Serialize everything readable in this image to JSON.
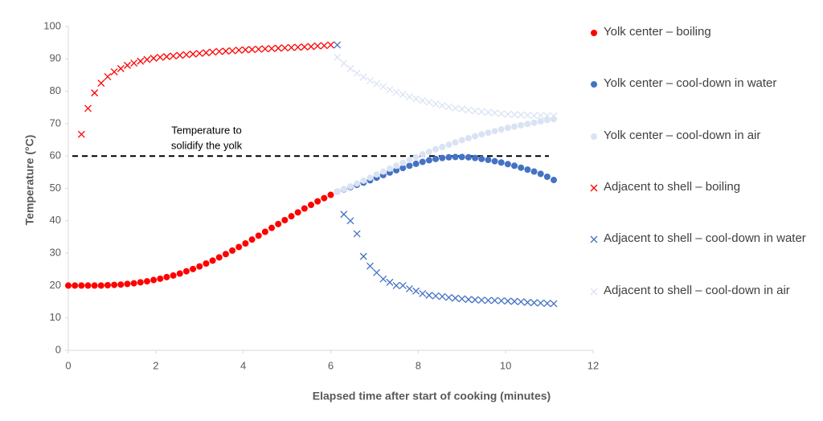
{
  "chart_data": {
    "type": "scatter",
    "xlabel": "Elapsed time after start of cooking (minutes)",
    "ylabel": "Temperature (°C)",
    "xlim": [
      0,
      12
    ],
    "xticks": [
      0,
      2,
      4,
      6,
      8,
      10,
      12
    ],
    "ylim": [
      0,
      100
    ],
    "yticks": [
      0,
      10,
      20,
      30,
      40,
      50,
      60,
      70,
      80,
      90,
      100
    ],
    "grid": false,
    "legend": "right",
    "reference_line": {
      "value": 60,
      "label": [
        "Temperature to",
        "solidify the yolk"
      ]
    },
    "series": [
      {
        "name": "Yolk center – boiling",
        "color": "#ff0000",
        "marker": "o",
        "x": [
          0,
          0.15,
          0.3,
          0.45,
          0.6,
          0.75,
          0.9,
          1.05,
          1.2,
          1.35,
          1.5,
          1.65,
          1.8,
          1.95,
          2.1,
          2.25,
          2.4,
          2.55,
          2.7,
          2.85,
          3.0,
          3.15,
          3.3,
          3.45,
          3.6,
          3.75,
          3.9,
          4.05,
          4.2,
          4.35,
          4.5,
          4.65,
          4.8,
          4.95,
          5.1,
          5.25,
          5.4,
          5.55,
          5.7,
          5.85,
          6.0
        ],
        "values": [
          20,
          20,
          20,
          20,
          20,
          20,
          20.1,
          20.2,
          20.3,
          20.5,
          20.7,
          21,
          21.3,
          21.7,
          22.1,
          22.6,
          23.1,
          23.7,
          24.4,
          25.1,
          25.9,
          26.8,
          27.7,
          28.7,
          29.7,
          30.8,
          31.9,
          33,
          34.2,
          35.4,
          36.6,
          37.8,
          39,
          40.2,
          41.4,
          42.6,
          43.8,
          44.9,
          46,
          47,
          48
        ]
      },
      {
        "name": "Yolk center – cool-down in water",
        "color": "#4472c4",
        "marker": "o",
        "x": [
          6.15,
          6.3,
          6.45,
          6.6,
          6.75,
          6.9,
          7.05,
          7.2,
          7.35,
          7.5,
          7.65,
          7.8,
          7.95,
          8.1,
          8.25,
          8.4,
          8.55,
          8.7,
          8.85,
          9.0,
          9.15,
          9.3,
          9.45,
          9.6,
          9.75,
          9.9,
          10.05,
          10.2,
          10.35,
          10.5,
          10.65,
          10.8,
          10.95,
          11.1
        ],
        "values": [
          49,
          49.7,
          50.4,
          51.1,
          51.8,
          52.5,
          53.3,
          54.1,
          54.9,
          55.6,
          56.3,
          57,
          57.6,
          58.2,
          58.7,
          59.1,
          59.4,
          59.6,
          59.7,
          59.7,
          59.6,
          59.4,
          59.1,
          58.8,
          58.4,
          58,
          57.5,
          57,
          56.4,
          55.8,
          55.2,
          54.5,
          53.6,
          52.6
        ]
      },
      {
        "name": "Yolk center – cool-down in air",
        "color": "#dae3f3",
        "marker": "o",
        "x": [
          6.15,
          6.3,
          6.45,
          6.6,
          6.75,
          6.9,
          7.05,
          7.2,
          7.35,
          7.5,
          7.65,
          7.8,
          7.95,
          8.1,
          8.25,
          8.4,
          8.55,
          8.7,
          8.85,
          9.0,
          9.15,
          9.3,
          9.45,
          9.6,
          9.75,
          9.9,
          10.05,
          10.2,
          10.35,
          10.5,
          10.65,
          10.8,
          10.95,
          11.1
        ],
        "values": [
          49,
          49.8,
          50.6,
          51.5,
          52.4,
          53.3,
          54.3,
          55.2,
          56.1,
          57,
          57.9,
          58.8,
          59.6,
          60.5,
          61.3,
          62.1,
          62.8,
          63.5,
          64.2,
          64.9,
          65.5,
          66.1,
          66.7,
          67.2,
          67.7,
          68.2,
          68.7,
          69.1,
          69.5,
          69.9,
          70.3,
          70.7,
          71.1,
          71.4
        ]
      },
      {
        "name": "Adjacent to shell – boiling",
        "color": "#ff0000",
        "marker": "x",
        "x": [
          0.3,
          0.45,
          0.6,
          0.75,
          0.9,
          1.05,
          1.2,
          1.35,
          1.5,
          1.65,
          1.8,
          1.95,
          2.1,
          2.25,
          2.4,
          2.55,
          2.7,
          2.85,
          3.0,
          3.15,
          3.3,
          3.45,
          3.6,
          3.75,
          3.9,
          4.05,
          4.2,
          4.35,
          4.5,
          4.65,
          4.8,
          4.95,
          5.1,
          5.25,
          5.4,
          5.55,
          5.7,
          5.85,
          6.0
        ],
        "values": [
          66.7,
          74.7,
          79.5,
          82.5,
          84.5,
          86,
          87,
          88,
          88.7,
          89.3,
          89.8,
          90.2,
          90.5,
          90.7,
          90.9,
          91.1,
          91.3,
          91.5,
          91.7,
          91.9,
          92.1,
          92.3,
          92.4,
          92.5,
          92.7,
          92.8,
          92.9,
          93,
          93.1,
          93.2,
          93.3,
          93.4,
          93.5,
          93.6,
          93.7,
          93.8,
          94,
          94.1,
          94.3
        ]
      },
      {
        "name": "Adjacent to shell – cool-down in water",
        "color": "#4472c4",
        "marker": "x",
        "x": [
          6.15,
          6.3,
          6.45,
          6.6,
          6.75,
          6.9,
          7.05,
          7.2,
          7.35,
          7.5,
          7.65,
          7.8,
          7.95,
          8.1,
          8.25,
          8.4,
          8.55,
          8.7,
          8.85,
          9.0,
          9.15,
          9.3,
          9.45,
          9.6,
          9.75,
          9.9,
          10.05,
          10.2,
          10.35,
          10.5,
          10.65,
          10.8,
          10.95,
          11.1
        ],
        "values": [
          94.3,
          42,
          40,
          36,
          29,
          26,
          24,
          22,
          21,
          20,
          20,
          19,
          18.3,
          17.5,
          17,
          16.8,
          16.6,
          16.3,
          16.1,
          15.9,
          15.7,
          15.6,
          15.5,
          15.4,
          15.4,
          15.3,
          15.2,
          15.1,
          15,
          14.8,
          14.7,
          14.6,
          14.5,
          14.4
        ]
      },
      {
        "name": "Adjacent to shell – cool-down in air",
        "color": "#dae3f3",
        "marker": "x",
        "x": [
          6.15,
          6.3,
          6.45,
          6.6,
          6.75,
          6.9,
          7.05,
          7.2,
          7.35,
          7.5,
          7.65,
          7.8,
          7.95,
          8.1,
          8.25,
          8.4,
          8.55,
          8.7,
          8.85,
          9.0,
          9.15,
          9.3,
          9.45,
          9.6,
          9.75,
          9.9,
          10.05,
          10.2,
          10.35,
          10.5,
          10.65,
          10.8,
          10.95,
          11.1
        ],
        "values": [
          90.5,
          88.6,
          87,
          85.6,
          84.4,
          83.3,
          82.3,
          81.4,
          80.5,
          79.7,
          79,
          78.3,
          77.7,
          77.1,
          76.6,
          76.1,
          75.6,
          75.2,
          74.8,
          74.5,
          74.2,
          73.9,
          73.7,
          73.5,
          73.3,
          73.1,
          72.9,
          72.8,
          72.7,
          72.6,
          72.5,
          72.5,
          72.4,
          72.4
        ]
      }
    ]
  }
}
